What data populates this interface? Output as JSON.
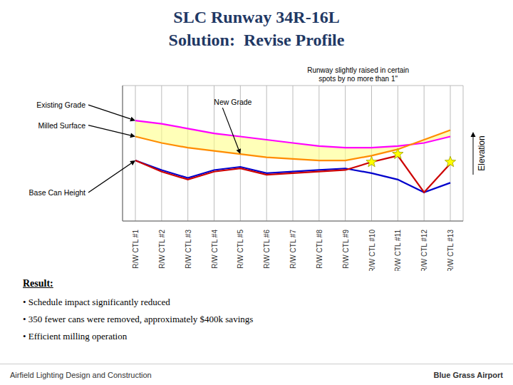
{
  "chart_data": {
    "type": "line",
    "title": "SLC Runway 34R-16L",
    "subtitle": "Solution:  Revise Profile",
    "ylabel": "Elevation",
    "categories": [
      "R/W CTL #1",
      "R/W CTL #2",
      "R/W CTL #3",
      "R/W CTL #4",
      "R/W CTL #5",
      "R/W CTL #6",
      "R/W CTL #7",
      "R/W CTL #8",
      "R/W CTL #9",
      "R/W CTL #10",
      "R/W CTL #11",
      "R/W CTL #12",
      "R/W CTL #13"
    ],
    "series": [
      {
        "color": "#FF00FF",
        "values": [
          0.83,
          0.81,
          0.78,
          0.75,
          0.73,
          0.71,
          0.69,
          0.67,
          0.66,
          0.66,
          0.67,
          0.69,
          0.73
        ]
      },
      {
        "color": "#FF8C00",
        "values": [
          0.73,
          0.69,
          0.66,
          0.64,
          0.62,
          0.6,
          0.59,
          0.58,
          0.58,
          0.61,
          0.65,
          0.71,
          0.77
        ]
      },
      {
        "color": "#0000CC",
        "values": [
          0.58,
          0.52,
          0.47,
          0.52,
          0.54,
          0.5,
          0.51,
          0.52,
          0.53,
          0.5,
          0.46,
          0.38,
          0.44
        ]
      },
      {
        "color": "#CC0000",
        "values": [
          0.58,
          0.51,
          0.46,
          0.51,
          0.53,
          0.49,
          0.5,
          0.51,
          0.52,
          0.57,
          0.61,
          0.38,
          0.56
        ]
      },
      {
        "type": "scatter",
        "marker": "star",
        "color": "yellow",
        "values": [
          null,
          null,
          null,
          null,
          null,
          null,
          null,
          null,
          null,
          0.57,
          0.62,
          null,
          0.57
        ]
      }
    ],
    "color": "#FFFF88",
    "ylim": [
      0.2,
      1.05
    ],
    "yticks": [
      0.2,
      1.02
    ],
    "grid": true,
    "tick_labels": "x",
    "annotations": [
      "Existing Grade",
      "Milled Surface",
      "Base Can Height",
      "New Grade",
      "Runway slightly raised in certain\nspots by no more than 1\"",
      "Result:",
      "• Schedule impact significantly reduced",
      "• 350 fewer cans were removed, approximately $400k savings",
      "• Efficient milling operation",
      "Airfield Lighting Design and Construction",
      "Blue Grass Airport"
    ]
  }
}
